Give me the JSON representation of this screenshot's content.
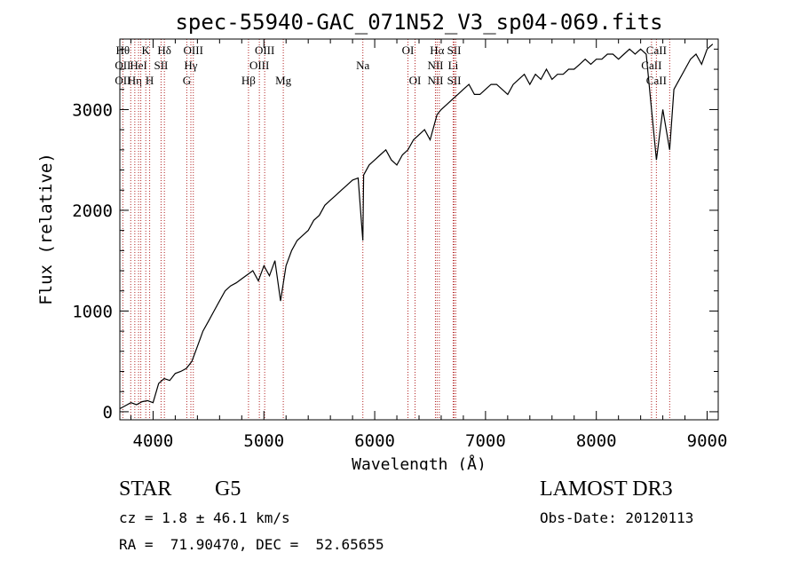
{
  "chart_data": {
    "type": "line",
    "title": "spec-55940-GAC_071N52_V3_sp04-069.fits",
    "xlabel": "Wavelength (Å)",
    "ylabel": "Flux (relative)",
    "xlim": [
      3700,
      9100
    ],
    "ylim": [
      -80,
      3700
    ],
    "x_ticks": [
      4000,
      5000,
      6000,
      7000,
      8000,
      9000
    ],
    "y_ticks": [
      0,
      1000,
      2000,
      3000
    ],
    "x_tick_labels": [
      "4000",
      "5000",
      "6000",
      "7000",
      "8000",
      "9000"
    ],
    "y_tick_labels": [
      "0",
      "1000",
      "2000",
      "3000"
    ],
    "series": [
      {
        "name": "spectrum",
        "x": [
          3700,
          3750,
          3800,
          3850,
          3900,
          3950,
          4000,
          4050,
          4100,
          4150,
          4200,
          4250,
          4300,
          4350,
          4400,
          4450,
          4500,
          4550,
          4600,
          4650,
          4700,
          4750,
          4800,
          4850,
          4900,
          4950,
          5000,
          5050,
          5100,
          5150,
          5200,
          5250,
          5300,
          5350,
          5400,
          5450,
          5500,
          5550,
          5600,
          5650,
          5700,
          5750,
          5800,
          5850,
          5893,
          5900,
          5950,
          6000,
          6050,
          6100,
          6150,
          6200,
          6250,
          6300,
          6350,
          6400,
          6450,
          6500,
          6563,
          6600,
          6650,
          6700,
          6750,
          6800,
          6850,
          6900,
          6950,
          7000,
          7050,
          7100,
          7150,
          7200,
          7250,
          7300,
          7350,
          7400,
          7450,
          7500,
          7550,
          7600,
          7650,
          7700,
          7750,
          7800,
          7850,
          7900,
          7950,
          8000,
          8050,
          8100,
          8150,
          8200,
          8250,
          8300,
          8350,
          8400,
          8450,
          8498,
          8542,
          8600,
          8662,
          8700,
          8750,
          8800,
          8850,
          8900,
          8950,
          9000,
          9050
        ],
        "y": [
          30,
          60,
          90,
          70,
          100,
          110,
          90,
          280,
          330,
          310,
          380,
          400,
          430,
          500,
          650,
          800,
          900,
          1000,
          1100,
          1200,
          1250,
          1280,
          1320,
          1360,
          1400,
          1300,
          1450,
          1350,
          1500,
          1100,
          1450,
          1600,
          1700,
          1750,
          1800,
          1900,
          1950,
          2050,
          2100,
          2150,
          2200,
          2250,
          2300,
          2320,
          1700,
          2350,
          2450,
          2500,
          2550,
          2600,
          2500,
          2450,
          2550,
          2600,
          2700,
          2750,
          2800,
          2700,
          2950,
          3000,
          3050,
          3100,
          3150,
          3200,
          3250,
          3150,
          3150,
          3200,
          3250,
          3250,
          3200,
          3150,
          3250,
          3300,
          3350,
          3250,
          3350,
          3300,
          3400,
          3300,
          3350,
          3350,
          3400,
          3400,
          3450,
          3500,
          3450,
          3500,
          3500,
          3550,
          3550,
          3500,
          3550,
          3600,
          3550,
          3600,
          3550,
          3000,
          2500,
          3000,
          2600,
          3200,
          3300,
          3400,
          3500,
          3550,
          3450,
          3600,
          3650
        ]
      }
    ],
    "line_markers": [
      {
        "wavelength": 3727,
        "labels": [
          "Hθ",
          "OII",
          "OII"
        ]
      },
      {
        "wavelength": 3798,
        "labels": [
          "",
          "",
          ""
        ]
      },
      {
        "wavelength": 3835,
        "labels": [
          "",
          "",
          "Hη"
        ]
      },
      {
        "wavelength": 3869,
        "labels": [
          "",
          "HeI",
          ""
        ]
      },
      {
        "wavelength": 3889,
        "labels": [
          "",
          "",
          ""
        ]
      },
      {
        "wavelength": 3934,
        "labels": [
          "K",
          "",
          ""
        ]
      },
      {
        "wavelength": 3969,
        "labels": [
          "",
          "",
          "H"
        ]
      },
      {
        "wavelength": 4072,
        "labels": [
          "",
          "SII",
          ""
        ]
      },
      {
        "wavelength": 4102,
        "labels": [
          "Hδ",
          "",
          ""
        ]
      },
      {
        "wavelength": 4304,
        "labels": [
          "",
          "",
          "G"
        ]
      },
      {
        "wavelength": 4341,
        "labels": [
          "",
          "Hγ",
          ""
        ]
      },
      {
        "wavelength": 4363,
        "labels": [
          "OIII",
          "",
          ""
        ]
      },
      {
        "wavelength": 4861,
        "labels": [
          "",
          "",
          "Hβ"
        ]
      },
      {
        "wavelength": 4959,
        "labels": [
          "",
          "OIII",
          ""
        ]
      },
      {
        "wavelength": 5007,
        "labels": [
          "OIII",
          "",
          ""
        ]
      },
      {
        "wavelength": 5175,
        "labels": [
          "",
          "",
          "Mg"
        ]
      },
      {
        "wavelength": 5893,
        "labels": [
          "",
          "Na",
          ""
        ]
      },
      {
        "wavelength": 6300,
        "labels": [
          "OI",
          "",
          ""
        ]
      },
      {
        "wavelength": 6364,
        "labels": [
          "",
          "",
          "OI"
        ]
      },
      {
        "wavelength": 6548,
        "labels": [
          "",
          "NII",
          "NII"
        ]
      },
      {
        "wavelength": 6563,
        "labels": [
          "Hα",
          "",
          ""
        ]
      },
      {
        "wavelength": 6583,
        "labels": [
          "",
          "",
          ""
        ]
      },
      {
        "wavelength": 6708,
        "labels": [
          "",
          "Li",
          ""
        ]
      },
      {
        "wavelength": 6717,
        "labels": [
          "SII",
          "",
          "SII"
        ]
      },
      {
        "wavelength": 6731,
        "labels": [
          "",
          "",
          ""
        ]
      },
      {
        "wavelength": 8498,
        "labels": [
          "",
          "CaII",
          ""
        ]
      },
      {
        "wavelength": 8542,
        "labels": [
          "CaII",
          "",
          "CaII"
        ]
      },
      {
        "wavelength": 8662,
        "labels": [
          "",
          "",
          ""
        ]
      }
    ]
  },
  "info": {
    "object_type": "STAR",
    "subclass": "G5",
    "survey": "LAMOST DR3",
    "redshift": "cz = 1.8 ± 46.1 km/s",
    "obs_date": "Obs-Date: 20120113",
    "coords": "RA =  71.90470, DEC =  52.65655"
  },
  "colors": {
    "line": "#000000",
    "marker": "#b22222",
    "axis": "#000000"
  }
}
